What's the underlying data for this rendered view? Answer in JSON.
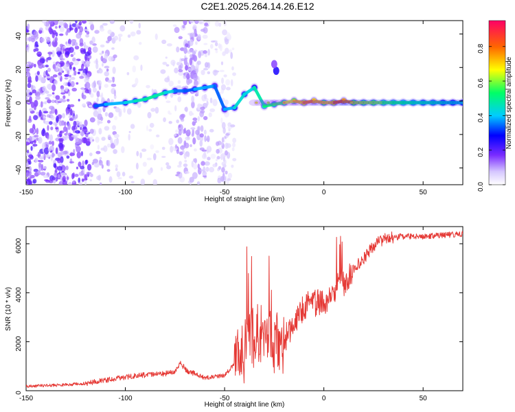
{
  "page": {
    "title": "C2E1.2025.264.14.26.E12"
  },
  "chart_data": [
    {
      "type": "heatmap",
      "xlabel": "Height of straight line (km)",
      "ylabel": "Frequency (Hz)",
      "xlim": [
        -150,
        70
      ],
      "ylim": [
        -50,
        48
      ],
      "x_ticks": [
        -150,
        -100,
        -50,
        0,
        50
      ],
      "y_ticks": [
        -40,
        -20,
        0,
        20,
        40
      ],
      "colorbar": {
        "label": "Normalized spectral amplitude",
        "range": [
          0,
          0.95
        ],
        "ticks": [
          0,
          0.2,
          0.4,
          0.6,
          0.8
        ],
        "tick_labels": [
          "0.0",
          "0.2",
          "0.4",
          "0.6",
          "0.8"
        ]
      },
      "ridge": [
        {
          "x": -115,
          "y": -3,
          "amp": 0.35
        },
        {
          "x": -110,
          "y": -2,
          "amp": 0.42
        },
        {
          "x": -100,
          "y": -1,
          "amp": 0.45
        },
        {
          "x": -95,
          "y": 0,
          "amp": 0.5
        },
        {
          "x": -90,
          "y": 1,
          "amp": 0.52
        },
        {
          "x": -85,
          "y": 3,
          "amp": 0.55
        },
        {
          "x": -80,
          "y": 5,
          "amp": 0.5
        },
        {
          "x": -75,
          "y": 6,
          "amp": 0.45
        },
        {
          "x": -70,
          "y": 6,
          "amp": 0.35
        },
        {
          "x": -65,
          "y": 7,
          "amp": 0.42
        },
        {
          "x": -60,
          "y": 8,
          "amp": 0.45
        },
        {
          "x": -55,
          "y": 9,
          "amp": 0.4
        },
        {
          "x": -50,
          "y": -5,
          "amp": 0.38
        },
        {
          "x": -45,
          "y": -4,
          "amp": 0.48
        },
        {
          "x": -40,
          "y": 4,
          "amp": 0.5
        },
        {
          "x": -35,
          "y": 8,
          "amp": 0.45
        },
        {
          "x": -30,
          "y": -3,
          "amp": 0.6
        },
        {
          "x": -25,
          "y": -2,
          "amp": 0.55
        },
        {
          "x": -20,
          "y": -1,
          "amp": 0.65
        },
        {
          "x": -15,
          "y": 0,
          "amp": 0.75
        },
        {
          "x": -10,
          "y": -1,
          "amp": 0.8
        },
        {
          "x": -5,
          "y": 0,
          "amp": 0.85
        },
        {
          "x": 0,
          "y": -1,
          "amp": 0.7
        },
        {
          "x": 5,
          "y": -1,
          "amp": 0.8
        },
        {
          "x": 10,
          "y": 0,
          "amp": 0.9
        },
        {
          "x": 15,
          "y": -1,
          "amp": 0.72
        },
        {
          "x": 20,
          "y": -1,
          "amp": 0.65
        },
        {
          "x": 25,
          "y": -1,
          "amp": 0.7
        },
        {
          "x": 30,
          "y": -1,
          "amp": 0.62
        },
        {
          "x": 35,
          "y": -1,
          "amp": 0.6
        },
        {
          "x": 40,
          "y": -1,
          "amp": 0.58
        },
        {
          "x": 45,
          "y": -1,
          "amp": 0.55
        },
        {
          "x": 50,
          "y": -1,
          "amp": 0.52
        },
        {
          "x": 55,
          "y": -1,
          "amp": 0.54
        },
        {
          "x": 60,
          "y": -1,
          "amp": 0.5
        },
        {
          "x": 65,
          "y": -1,
          "amp": 0.5
        },
        {
          "x": 70,
          "y": -1,
          "amp": 0.48
        }
      ],
      "features": [
        {
          "x": -24,
          "y": 18,
          "amp": 0.25
        },
        {
          "x": -25,
          "y": 22,
          "amp": 0.15
        }
      ]
    },
    {
      "type": "line",
      "xlabel": "Height of straight line (km)",
      "ylabel": "SNR (10 * v/v)",
      "xlim": [
        -150,
        70
      ],
      "ylim": [
        0,
        6700
      ],
      "x_ticks": [
        -150,
        -100,
        -50,
        0,
        50
      ],
      "y_ticks": [
        0,
        2000,
        4000,
        6000
      ],
      "series": [
        {
          "color": "#e53935",
          "points": [
            {
              "x": -150,
              "y": 180
            },
            {
              "x": -140,
              "y": 210
            },
            {
              "x": -130,
              "y": 240
            },
            {
              "x": -120,
              "y": 300
            },
            {
              "x": -110,
              "y": 430
            },
            {
              "x": -100,
              "y": 560
            },
            {
              "x": -90,
              "y": 640
            },
            {
              "x": -80,
              "y": 700
            },
            {
              "x": -75,
              "y": 760
            },
            {
              "x": -72,
              "y": 1200
            },
            {
              "x": -70,
              "y": 850
            },
            {
              "x": -60,
              "y": 520
            },
            {
              "x": -50,
              "y": 620
            },
            {
              "x": -40,
              "y": 1600
            },
            {
              "x": -35,
              "y": 2200
            },
            {
              "x": -30,
              "y": 2600
            },
            {
              "x": -25,
              "y": 1900
            },
            {
              "x": -20,
              "y": 2000
            },
            {
              "x": -15,
              "y": 2900
            },
            {
              "x": -10,
              "y": 3400
            },
            {
              "x": -5,
              "y": 3600
            },
            {
              "x": 0,
              "y": 3500
            },
            {
              "x": 5,
              "y": 3900
            },
            {
              "x": 8,
              "y": 4900
            },
            {
              "x": 10,
              "y": 4300
            },
            {
              "x": 15,
              "y": 5000
            },
            {
              "x": 20,
              "y": 5400
            },
            {
              "x": 25,
              "y": 5900
            },
            {
              "x": 30,
              "y": 6200
            },
            {
              "x": 40,
              "y": 6300
            },
            {
              "x": 50,
              "y": 6300
            },
            {
              "x": 60,
              "y": 6350
            },
            {
              "x": 70,
              "y": 6400
            }
          ]
        }
      ]
    }
  ]
}
